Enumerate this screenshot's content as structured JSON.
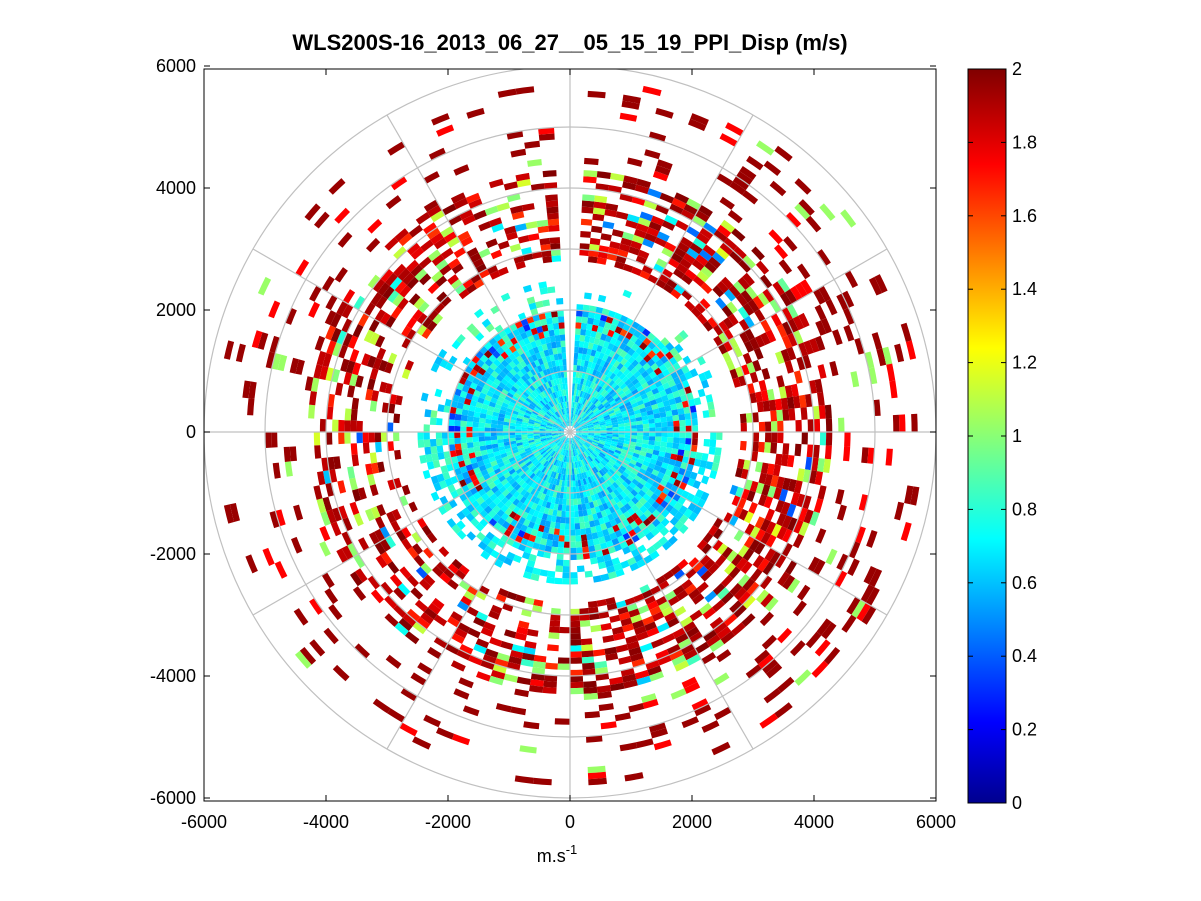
{
  "chart_data": {
    "type": "heatmap",
    "subtype": "polar-ppi",
    "title": "WLS200S-16_2013_06_27__05_15_19_PPI_Disp (m/s)",
    "xlabel_base": "m.s",
    "xlabel_exponent": "-1",
    "ylabel": "",
    "xlim": [
      -6000,
      6000
    ],
    "ylim": [
      -6000,
      6000
    ],
    "xticks": [
      "-6000",
      "-4000",
      "-2000",
      "0",
      "2000",
      "4000",
      "6000"
    ],
    "yticks": [
      "6000",
      "4000",
      "2000",
      "0",
      "-2000",
      "-4000",
      "-6000"
    ],
    "rings": [
      1000,
      2000,
      3000,
      4000,
      5000,
      6000
    ],
    "spokes_deg": [
      0,
      30,
      60,
      90,
      120,
      150,
      180,
      210,
      240,
      270,
      300,
      330
    ],
    "grid": true,
    "colorbar": {
      "colormap": "jet",
      "clim": [
        0,
        2
      ],
      "ticks": [
        "0",
        "0.2",
        "0.4",
        "0.6",
        "0.8",
        "1",
        "1.2",
        "1.4",
        "1.6",
        "1.8",
        "2"
      ]
    },
    "regions": [
      {
        "name": "inner disk",
        "range_m": [
          0,
          1800
        ],
        "typical_value": 0.7,
        "description": "cyan/light-blue values 0.55-0.9"
      },
      {
        "name": "transition ring",
        "range_m": [
          1800,
          2500
        ],
        "typical_value": 0.8,
        "description": "mixed blue/cyan with scattered red"
      },
      {
        "name": "middle ring",
        "range_m": [
          2800,
          4300
        ],
        "typical_value": 1.8,
        "description": "mostly dark red/red with green and yellow patches"
      },
      {
        "name": "outer ring",
        "range_m": [
          4300,
          5700
        ],
        "typical_value": 2.0,
        "description": "sparse dark red and red segments"
      }
    ],
    "missing_sector_deg": [
      -3,
      3
    ]
  }
}
